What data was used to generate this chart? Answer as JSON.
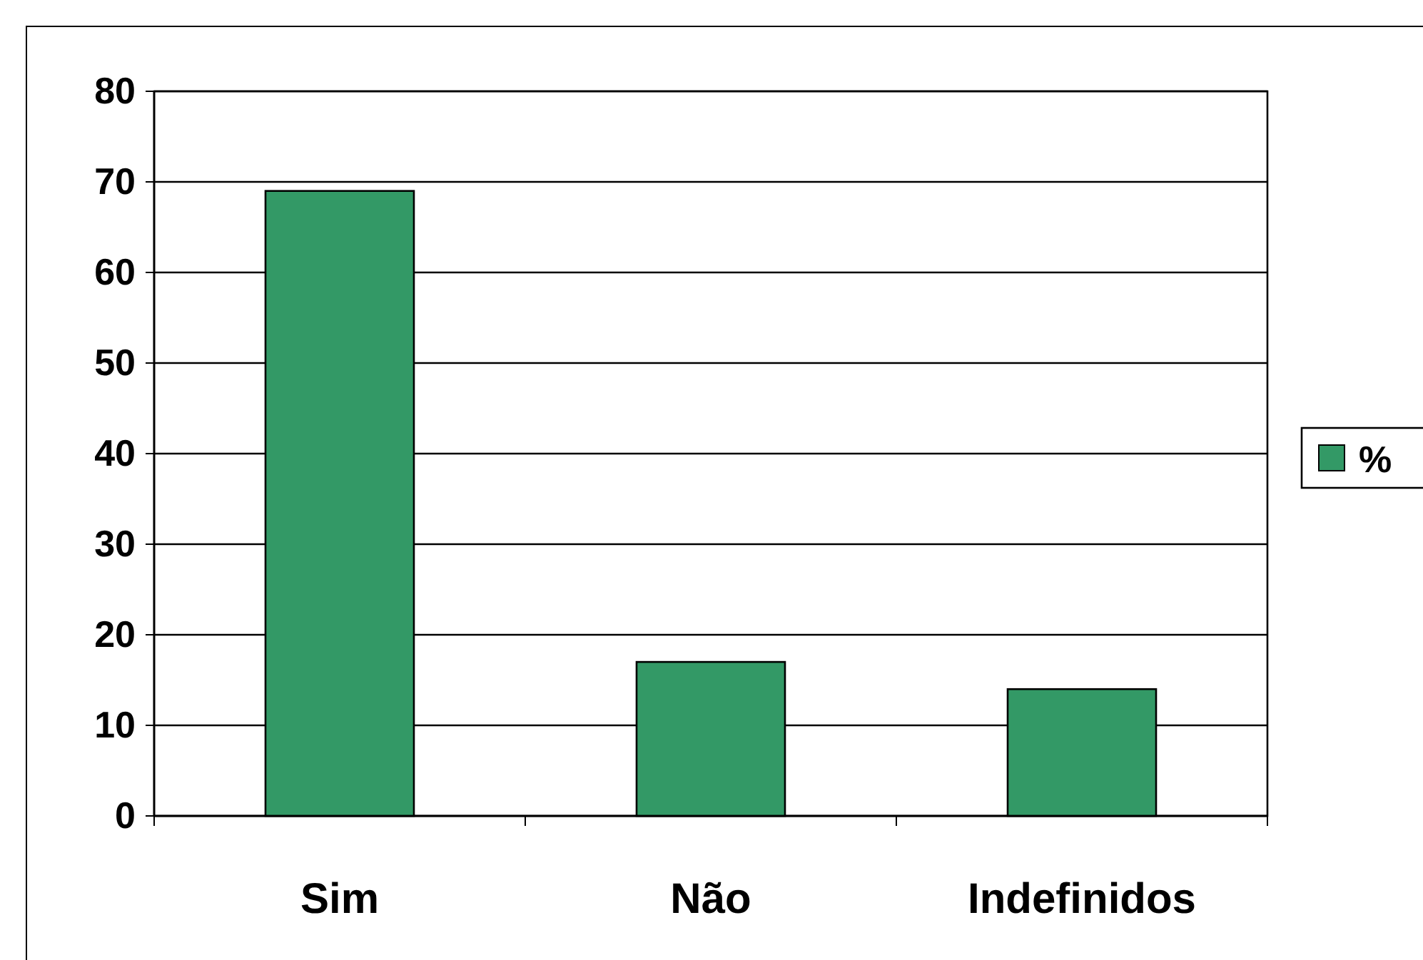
{
  "chart_data": {
    "type": "bar",
    "categories": [
      "Sim",
      "Não",
      "Indefinidos"
    ],
    "series": [
      {
        "name": "%",
        "color": "#339966",
        "values": [
          69,
          17,
          14
        ]
      }
    ],
    "ylim": [
      0,
      80
    ],
    "yticks": [
      0,
      10,
      20,
      30,
      40,
      50,
      60,
      70,
      80
    ],
    "grid": "y",
    "legend": "right"
  }
}
